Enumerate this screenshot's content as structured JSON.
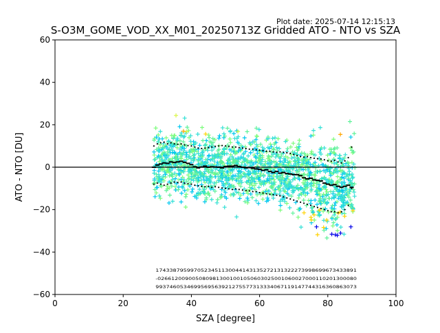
{
  "chart_data": {
    "type": "scatter",
    "title": "S-O3M_GOME_VOD_XX_M01_20250713Z Gridded ATO - NTO vs SZA",
    "plot_date": "Plot date: 2025-07-14 12:15:13",
    "xlabel": "SZA [degree]",
    "ylabel": "ATO - NTO [DU]",
    "xlim": [
      0,
      100
    ],
    "ylim": [
      -60,
      60
    ],
    "x_ticks": [
      "0",
      "20",
      "40",
      "60",
      "80",
      "100"
    ],
    "y_ticks": [
      "−60",
      "−40",
      "−20",
      "0",
      "20",
      "40",
      "60"
    ],
    "x_tick_values": [
      0,
      20,
      40,
      60,
      80,
      100
    ],
    "y_tick_values": [
      -60,
      -40,
      -20,
      0,
      20,
      40,
      60
    ],
    "grid": false,
    "legend": "none",
    "marker": "plus",
    "zero_line": 0,
    "scatter_x_range": [
      29,
      88
    ],
    "point_colors": [
      "#7cfc7c",
      "#5ff29a",
      "#33e0d6",
      "#00c8f0",
      "#d8f540",
      "#ffd200",
      "#ffa500",
      "#0000e6"
    ],
    "series": [
      {
        "name": "mean",
        "style": "dashes",
        "x": [
          29,
          30,
          31,
          32,
          33,
          34,
          35,
          36,
          37,
          38,
          39,
          40,
          41,
          42,
          43,
          44,
          45,
          46,
          47,
          48,
          49,
          50,
          51,
          52,
          53,
          54,
          55,
          56,
          57,
          58,
          59,
          60,
          61,
          62,
          63,
          64,
          65,
          66,
          67,
          68,
          69,
          70,
          71,
          72,
          73,
          74,
          75,
          76,
          77,
          78,
          79,
          80,
          81,
          82,
          83,
          84,
          85,
          86,
          87
        ],
        "y": [
          0,
          1,
          1.5,
          2,
          1.8,
          2.5,
          2.2,
          2.5,
          2.8,
          2.3,
          1.8,
          1.2,
          0.2,
          -0.3,
          0.1,
          0.5,
          0,
          0.2,
          0.1,
          0,
          -0.3,
          0.3,
          0.5,
          0.5,
          0.8,
          0.3,
          0,
          -0.3,
          -0.2,
          -0.5,
          -0.8,
          -1,
          -1.5,
          -1.2,
          -2,
          -2.5,
          -2,
          -2.8,
          -2.5,
          -3,
          -3.2,
          -3.5,
          -3.5,
          -4,
          -5,
          -5.5,
          -5.2,
          -6,
          -6.2,
          -6.5,
          -7.5,
          -8,
          -8.5,
          -8.2,
          -9,
          -9.5,
          -9,
          -8.5,
          -9.5
        ]
      },
      {
        "name": "upper",
        "style": "dots",
        "x": [
          29,
          30,
          31,
          32,
          33,
          34,
          35,
          36,
          37,
          38,
          39,
          40,
          41,
          42,
          43,
          44,
          45,
          46,
          47,
          48,
          49,
          50,
          51,
          52,
          53,
          54,
          55,
          56,
          57,
          58,
          59,
          60,
          61,
          62,
          63,
          64,
          65,
          66,
          67,
          68,
          69,
          70,
          71,
          72,
          73,
          74,
          75,
          76,
          77,
          78,
          79,
          80,
          81,
          82,
          83,
          84,
          85,
          86,
          87
        ],
        "y": [
          10,
          11,
          11.5,
          11.8,
          11,
          11.5,
          11,
          10.8,
          11,
          10.5,
          10.2,
          10,
          9.5,
          9,
          8.8,
          9,
          9.2,
          9.5,
          9.8,
          10,
          10.2,
          10,
          9.8,
          9.5,
          9.5,
          9.2,
          9,
          8.8,
          8.5,
          8.5,
          8.2,
          8,
          7.8,
          7.5,
          7.5,
          7.2,
          7,
          7.2,
          7,
          6.8,
          6.5,
          6,
          5.5,
          5,
          4.8,
          5,
          4.5,
          4.2,
          4,
          3.8,
          3.5,
          3,
          2.8,
          3.2,
          2.5,
          2,
          3,
          4.5,
          9.5
        ]
      },
      {
        "name": "lower",
        "style": "dots",
        "x": [
          29,
          30,
          31,
          32,
          33,
          34,
          35,
          36,
          37,
          38,
          39,
          40,
          41,
          42,
          43,
          44,
          45,
          46,
          47,
          48,
          49,
          50,
          51,
          52,
          53,
          54,
          55,
          56,
          57,
          58,
          59,
          60,
          61,
          62,
          63,
          64,
          65,
          66,
          67,
          68,
          69,
          70,
          71,
          72,
          73,
          74,
          75,
          76,
          77,
          78,
          79,
          80,
          81,
          82,
          83,
          84,
          85,
          86,
          87
        ],
        "y": [
          -8,
          -7.5,
          -8,
          -8.5,
          -8,
          -7.5,
          -7,
          -7.2,
          -7,
          -7.5,
          -7.8,
          -8,
          -8.5,
          -8.8,
          -9,
          -9.2,
          -9,
          -9.5,
          -9.2,
          -9.5,
          -9.8,
          -10,
          -10.2,
          -10.5,
          -10.2,
          -10.5,
          -10.8,
          -11,
          -11.2,
          -11.5,
          -11.5,
          -12,
          -12.2,
          -12.5,
          -12.8,
          -13,
          -13.2,
          -13.5,
          -14,
          -14.5,
          -15,
          -15.5,
          -16,
          -16.5,
          -17,
          -17.5,
          -18,
          -18.5,
          -19,
          -19.5,
          -20,
          -20.5,
          -21,
          -21,
          -21.5,
          -21,
          -20,
          -18,
          -10
        ]
      }
    ],
    "annotation_rows": [
      "1743387959970523451130044143135272131322273998699673433891",
      "-0266120090050809813001001050603025001060027000110201300080",
      "9937460534699569563921275577313334067119147744316360863073"
    ]
  }
}
